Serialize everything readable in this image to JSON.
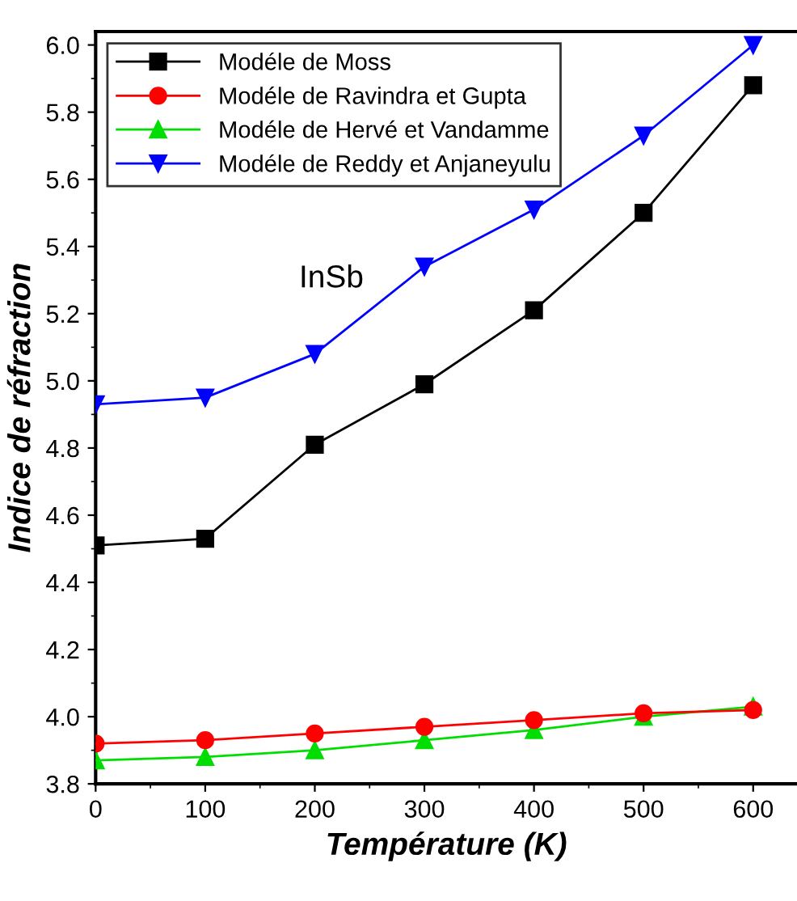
{
  "chart_data": {
    "type": "line",
    "xlabel": "Température (K)",
    "ylabel": "Indice de réfraction",
    "annotations": [
      "InSb"
    ],
    "x": [
      0,
      100,
      200,
      300,
      400,
      500,
      600
    ],
    "series": [
      {
        "name": "Modéle de Moss",
        "color": "#000000",
        "marker": "square",
        "values": [
          4.51,
          4.53,
          4.81,
          4.99,
          5.21,
          5.5,
          5.88
        ]
      },
      {
        "name": "Modéle de Ravindra et Gupta",
        "color": "#ff0000",
        "marker": "circle",
        "values": [
          3.92,
          3.93,
          3.95,
          3.97,
          3.99,
          4.01,
          4.02
        ]
      },
      {
        "name": "Modéle de Hervé et Vandamme",
        "color": "#00dd00",
        "marker": "triangle",
        "values": [
          3.87,
          3.88,
          3.9,
          3.93,
          3.96,
          4.0,
          4.03
        ]
      },
      {
        "name": "Modéle de Reddy et Anjaneyulu",
        "color": "#0000ff",
        "marker": "triangle_down",
        "values": [
          4.93,
          4.95,
          5.08,
          5.34,
          5.51,
          5.73,
          6.0
        ]
      }
    ],
    "xlim": [
      0,
      640
    ],
    "xticks": [
      0,
      100,
      200,
      300,
      400,
      500,
      600
    ],
    "ylim": [
      3.8,
      6.04
    ],
    "yticks": [
      {
        "value": 3.8,
        "label": "3.8"
      },
      {
        "value": 4.0,
        "label": "4.0"
      },
      {
        "value": 4.2,
        "label": "4.2"
      },
      {
        "value": 4.4,
        "label": "4.4"
      },
      {
        "value": 4.6,
        "label": "4.6"
      },
      {
        "value": 4.8,
        "label": "4.8"
      },
      {
        "value": 5.0,
        "label": "5.0"
      },
      {
        "value": 5.2,
        "label": "5.2"
      },
      {
        "value": 5.4,
        "label": "5.4"
      },
      {
        "value": 5.6,
        "label": "5.6"
      },
      {
        "value": 5.8,
        "label": "5.8"
      },
      {
        "value": 6.0,
        "label": "6.0"
      }
    ],
    "grid": false,
    "legend": "top left"
  }
}
